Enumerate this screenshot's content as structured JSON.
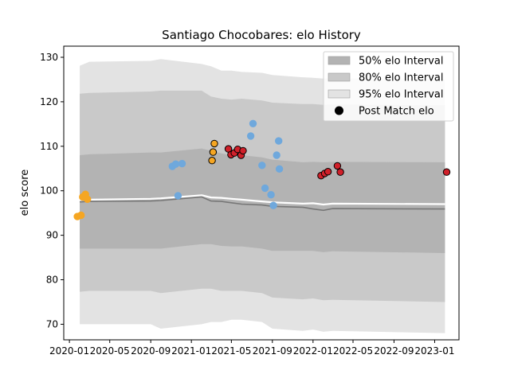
{
  "chart_data": {
    "type": "scatter",
    "title": "Santiago Chocobares: elo History",
    "xlabel": "",
    "ylabel": "elo score",
    "xlim": [
      "2019-12-15",
      "2023-03-15"
    ],
    "ylim": [
      66.5,
      132.5
    ],
    "grid": false,
    "legend_position": "top-right",
    "x_ticks": [
      "2020-01",
      "2020-05",
      "2020-09",
      "2021-01",
      "2021-05",
      "2021-09",
      "2022-01",
      "2022-05",
      "2022-09",
      "2023-01"
    ],
    "y_ticks": [
      70,
      80,
      90,
      100,
      110,
      120,
      130
    ],
    "legend": [
      {
        "label": "50% elo Interval",
        "color": "#b3b3b3"
      },
      {
        "label": "80% elo Interval",
        "color": "#c9c9c9"
      },
      {
        "label": "95% elo Interval",
        "color": "#e3e3e3"
      },
      {
        "label": "Post Match elo",
        "color": "#000000"
      }
    ],
    "colors": {
      "band50": "#b3b3b3",
      "band80": "#c9c9c9",
      "band95": "#e3e3e3",
      "mean_line": "#ffffff",
      "median_line": "#777777",
      "orange": "#f5a623",
      "blue": "#6fa8dc",
      "red": "#d0202a"
    },
    "bands": {
      "x": [
        "2020-02-01",
        "2020-03-01",
        "2020-09-01",
        "2020-10-01",
        "2021-02-01",
        "2021-03-01",
        "2021-04-01",
        "2021-05-01",
        "2021-06-01",
        "2021-08-01",
        "2021-09-01",
        "2021-12-01",
        "2022-01-01",
        "2022-02-01",
        "2022-03-01",
        "2023-02-01"
      ],
      "p025": [
        70.0,
        70.0,
        70.0,
        69.0,
        70.0,
        70.5,
        70.5,
        71.0,
        71.0,
        70.5,
        69.0,
        68.5,
        68.8,
        68.3,
        68.5,
        68.0
      ],
      "p10": [
        77.3,
        77.5,
        77.5,
        77.0,
        78.0,
        78.0,
        77.5,
        77.5,
        77.5,
        77.0,
        76.0,
        75.6,
        75.8,
        75.4,
        75.5,
        75.0
      ],
      "p25": [
        87.0,
        87.0,
        87.0,
        87.0,
        88.0,
        88.0,
        87.6,
        87.5,
        87.5,
        87.0,
        86.5,
        86.5,
        86.5,
        86.2,
        86.4,
        86.0
      ],
      "p75": [
        108.0,
        108.2,
        108.6,
        108.6,
        109.5,
        109.0,
        108.4,
        108.0,
        108.0,
        107.5,
        107.0,
        106.4,
        106.5,
        106.4,
        106.5,
        106.4
      ],
      "p90": [
        121.8,
        122.0,
        122.3,
        122.5,
        122.5,
        121.2,
        120.7,
        120.5,
        120.7,
        120.3,
        119.8,
        119.5,
        119.5,
        119.3,
        119.4,
        119.2
      ],
      "p975": [
        128.1,
        129.0,
        129.2,
        129.6,
        128.5,
        128.0,
        127.0,
        127.0,
        126.7,
        126.5,
        126.0,
        125.5,
        125.4,
        125.2,
        125.3,
        125.0
      ],
      "mean": [
        97.9,
        98.0,
        98.2,
        98.3,
        99.0,
        98.5,
        98.4,
        98.2,
        98.0,
        97.6,
        97.4,
        97.1,
        97.2,
        96.9,
        97.1,
        97.0
      ],
      "median": [
        97.5,
        97.6,
        97.7,
        97.8,
        98.6,
        97.7,
        97.6,
        97.3,
        97.0,
        96.8,
        96.5,
        96.3,
        95.9,
        95.6,
        96.0,
        95.9
      ]
    },
    "series": [
      {
        "color": "orange",
        "edge": "#f5a623",
        "points": [
          {
            "x": "2020-01-25",
            "y": 94.2
          },
          {
            "x": "2020-02-05",
            "y": 94.5
          },
          {
            "x": "2020-02-10",
            "y": 98.6
          },
          {
            "x": "2020-02-18",
            "y": 99.2
          },
          {
            "x": "2020-02-24",
            "y": 98.1
          }
        ]
      },
      {
        "color": "blue",
        "edge": "#6fa8dc",
        "points": [
          {
            "x": "2020-11-05",
            "y": 105.5
          },
          {
            "x": "2020-11-15",
            "y": 106.0
          },
          {
            "x": "2020-11-22",
            "y": 98.9
          },
          {
            "x": "2020-12-04",
            "y": 106.1
          },
          {
            "x": "2021-06-28",
            "y": 112.3
          },
          {
            "x": "2021-07-05",
            "y": 115.1
          },
          {
            "x": "2021-08-01",
            "y": 105.7
          },
          {
            "x": "2021-08-10",
            "y": 100.6
          },
          {
            "x": "2021-08-28",
            "y": 99.1
          },
          {
            "x": "2021-09-04",
            "y": 96.7
          },
          {
            "x": "2021-09-14",
            "y": 108.0
          },
          {
            "x": "2021-09-20",
            "y": 111.2
          },
          {
            "x": "2021-09-22",
            "y": 104.9
          }
        ]
      },
      {
        "color": "orange",
        "edge": "#000000",
        "points": [
          {
            "x": "2021-03-04",
            "y": 106.8
          },
          {
            "x": "2021-03-07",
            "y": 108.7
          },
          {
            "x": "2021-03-11",
            "y": 110.6
          }
        ]
      },
      {
        "color": "red",
        "edge": "#000000",
        "points": [
          {
            "x": "2021-04-22",
            "y": 109.4
          },
          {
            "x": "2021-04-30",
            "y": 108.1
          },
          {
            "x": "2021-05-10",
            "y": 108.5
          },
          {
            "x": "2021-05-20",
            "y": 109.3
          },
          {
            "x": "2021-05-30",
            "y": 108.0
          },
          {
            "x": "2021-06-05",
            "y": 109.0
          },
          {
            "x": "2022-01-25",
            "y": 103.4
          },
          {
            "x": "2022-02-05",
            "y": 103.9
          },
          {
            "x": "2022-02-15",
            "y": 104.3
          },
          {
            "x": "2022-03-15",
            "y": 105.6
          },
          {
            "x": "2022-03-24",
            "y": 104.2
          },
          {
            "x": "2023-02-06",
            "y": 104.2
          }
        ]
      }
    ]
  }
}
